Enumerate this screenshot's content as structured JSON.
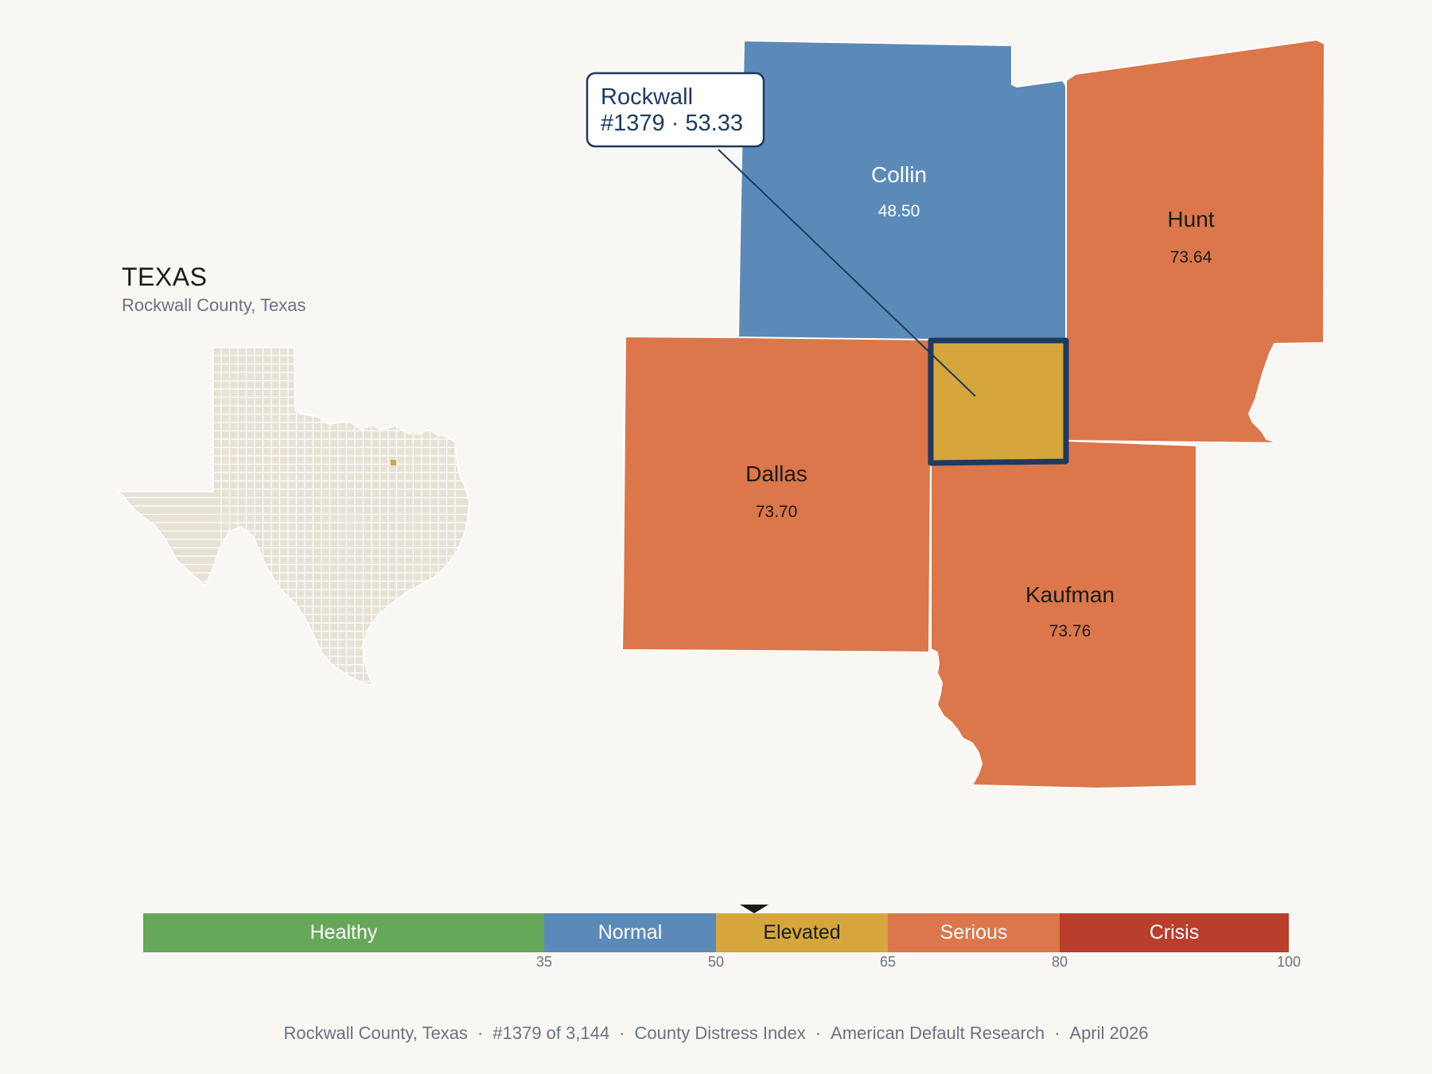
{
  "inset": {
    "title": "TEXAS",
    "subtitle": "Rockwall County, Texas"
  },
  "map_colors": {
    "healthy": "#67a75a",
    "normal": "#5b8ab9",
    "elevated": "#d4a63b",
    "serious": "#db774a",
    "crisis": "#b93e2c",
    "state_fill": "#e8e2d6",
    "highlight_outline": "#1d3a5f"
  },
  "counties": [
    {
      "name": "Collin",
      "score": "48.50",
      "category": "normal",
      "text_color": "#ffffff"
    },
    {
      "name": "Hunt",
      "score": "73.64",
      "category": "serious",
      "text_color": "#1a1a1a"
    },
    {
      "name": "Dallas",
      "score": "73.70",
      "category": "serious",
      "text_color": "#1a1a1a"
    },
    {
      "name": "Kaufman",
      "score": "73.76",
      "category": "serious",
      "text_color": "#1a1a1a"
    },
    {
      "name": "Rockwall",
      "score": "53.33",
      "category": "elevated",
      "text_color": "#1a1a1a"
    }
  ],
  "callout": {
    "line1": "Rockwall",
    "line2": "#1379 · 53.33"
  },
  "legend": {
    "segments": [
      {
        "label": "Healthy",
        "from": 0,
        "to": 35,
        "color": "#67a75a",
        "text_color": "#ffffff"
      },
      {
        "label": "Normal",
        "from": 35,
        "to": 50,
        "color": "#5b8ab9",
        "text_color": "#ffffff"
      },
      {
        "label": "Elevated",
        "from": 50,
        "to": 65,
        "color": "#d4a63b",
        "text_color": "#1a1a1a"
      },
      {
        "label": "Serious",
        "from": 65,
        "to": 80,
        "color": "#db774a",
        "text_color": "#ffffff"
      },
      {
        "label": "Crisis",
        "from": 80,
        "to": 100,
        "color": "#b93e2c",
        "text_color": "#ffffff"
      }
    ],
    "ticks": [
      "35",
      "50",
      "65",
      "80",
      "100"
    ],
    "marker_value": 53.33
  },
  "footer": {
    "county": "Rockwall County, Texas",
    "rank": "#1379 of 3,144",
    "index": "County Distress Index",
    "source": "American Default Research",
    "date": "April 2026"
  }
}
